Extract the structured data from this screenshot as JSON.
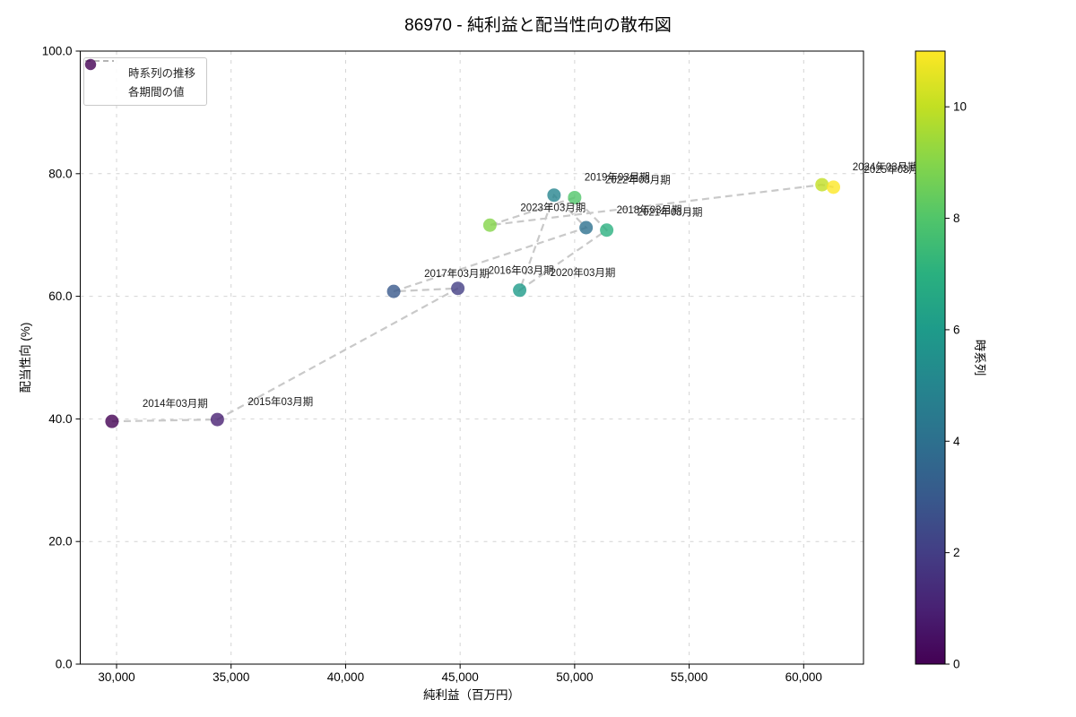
{
  "title": "86970 - 純利益と配当性向の散布図",
  "chart_data": {
    "type": "scatter",
    "title": "86970 - 純利益と配当性向の散布図",
    "xlabel": "純利益（百万円）",
    "ylabel": "配当性向 (%)",
    "xlim": [
      28400,
      62650
    ],
    "ylim": [
      0,
      100
    ],
    "x_ticks": [
      30000,
      35000,
      40000,
      45000,
      50000,
      55000,
      60000
    ],
    "x_tick_labels": [
      "30,000",
      "35,000",
      "40,000",
      "45,000",
      "50,000",
      "55,000",
      "60,000"
    ],
    "y_ticks": [
      0,
      20,
      40,
      60,
      80,
      100
    ],
    "y_tick_labels": [
      "0.0",
      "20.0",
      "40.0",
      "60.0",
      "80.0",
      "100.0"
    ],
    "grid": true,
    "grid_style": "dashed",
    "legend": {
      "position": "upper-left",
      "items": [
        {
          "label": "時系列の推移",
          "type": "dashed-line"
        },
        {
          "label": "各期間の値",
          "type": "marker"
        }
      ]
    },
    "colorbar": {
      "label": "時系列",
      "min": 0,
      "max": 11,
      "ticks": [
        0,
        2,
        4,
        6,
        8,
        10
      ],
      "colormap": "viridis",
      "colors": [
        "#440154",
        "#482173",
        "#433e85",
        "#38598c",
        "#2d708e",
        "#25858e",
        "#1e9b8a",
        "#2ab07f",
        "#51c56a",
        "#85d54a",
        "#c2df23",
        "#fde725"
      ]
    },
    "line_color": "#c9c9c9",
    "points": [
      {
        "period": "2014年03月期",
        "x": 29800,
        "y": 39.6,
        "t": 0,
        "color": "#440154"
      },
      {
        "period": "2015年03月期",
        "x": 34400,
        "y": 39.9,
        "t": 1,
        "color": "#482173"
      },
      {
        "period": "2016年03月期",
        "x": 44900,
        "y": 61.3,
        "t": 2,
        "color": "#433e85"
      },
      {
        "period": "2017年03月期",
        "x": 42100,
        "y": 60.8,
        "t": 3,
        "color": "#38598c"
      },
      {
        "period": "2018年03月期",
        "x": 50500,
        "y": 71.2,
        "t": 4,
        "color": "#2d708e"
      },
      {
        "period": "2019年03月期",
        "x": 49100,
        "y": 76.5,
        "t": 5,
        "color": "#25858e"
      },
      {
        "period": "2020年03月期",
        "x": 47600,
        "y": 61.0,
        "t": 6,
        "color": "#1e9b8a"
      },
      {
        "period": "2021年03月期",
        "x": 51400,
        "y": 70.8,
        "t": 7,
        "color": "#2ab07f"
      },
      {
        "period": "2022年03月期",
        "x": 50000,
        "y": 76.1,
        "t": 8,
        "color": "#51c56a"
      },
      {
        "period": "2023年03月期",
        "x": 46300,
        "y": 71.6,
        "t": 9,
        "color": "#85d54a"
      },
      {
        "period": "2024年03月期",
        "x": 60800,
        "y": 78.2,
        "t": 10,
        "color": "#c2df23"
      },
      {
        "period": "2025年03月期",
        "x": 61300,
        "y": 77.8,
        "t": 11,
        "color": "#fde725"
      }
    ]
  }
}
